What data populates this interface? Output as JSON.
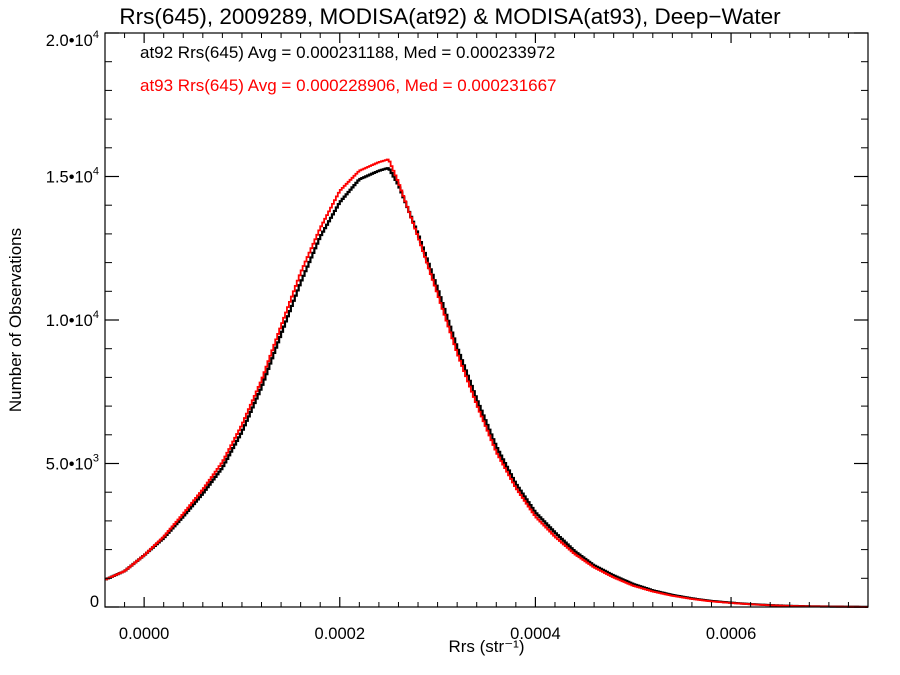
{
  "chart_data": {
    "type": "line",
    "title": "Rrs(645), 2009289, MODISA(at92) & MODISA(at93), Deep−Water",
    "xlabel": "Rrs (str⁻¹)",
    "ylabel": "Number of Observations",
    "xlim": [
      -4e-05,
      0.00074
    ],
    "ylim": [
      0,
      20000
    ],
    "x_ticks": [
      {
        "value": 0.0,
        "label": "0.0000"
      },
      {
        "value": 0.0002,
        "label": "0.0002"
      },
      {
        "value": 0.0004,
        "label": "0.0004"
      },
      {
        "value": 0.0006,
        "label": "0.0006"
      }
    ],
    "y_ticks": [
      {
        "value": 0,
        "label": "0"
      },
      {
        "value": 5000,
        "label": "5.0•10",
        "exp": "3"
      },
      {
        "value": 10000,
        "label": "1.0•10",
        "exp": "4"
      },
      {
        "value": 15000,
        "label": "1.5•10",
        "exp": "4"
      },
      {
        "value": 20000,
        "label": "2.0•10",
        "exp": "4"
      }
    ],
    "grid": false,
    "series": [
      {
        "name": "at92",
        "color": "#000000",
        "annotation": "at92 Rrs(645) Avg = 0.000231188, Med = 0.000233972",
        "x": [
          -4e-05,
          -2e-05,
          0.0,
          2e-05,
          4e-05,
          6e-05,
          8e-05,
          0.0001,
          0.00012,
          0.00014,
          0.00016,
          0.00018,
          0.0002,
          0.00022,
          0.00024,
          0.00025,
          0.00026,
          0.00028,
          0.0003,
          0.00032,
          0.00034,
          0.00036,
          0.00038,
          0.0004,
          0.00042,
          0.00044,
          0.00046,
          0.00048,
          0.0005,
          0.00052,
          0.00054,
          0.00056,
          0.00058,
          0.0006,
          0.00062,
          0.00064,
          0.00066,
          0.00068,
          0.0007,
          0.00072,
          0.00074
        ],
        "values": [
          950,
          1250,
          1800,
          2400,
          3150,
          3950,
          4850,
          6100,
          7650,
          9500,
          11300,
          12900,
          14100,
          14900,
          15200,
          15300,
          14700,
          13000,
          11100,
          9050,
          7250,
          5600,
          4300,
          3300,
          2600,
          1950,
          1450,
          1100,
          800,
          580,
          420,
          300,
          210,
          150,
          100,
          65,
          40,
          25,
          15,
          10,
          5
        ]
      },
      {
        "name": "at93",
        "color": "#ff0000",
        "annotation": "at93 Rrs(645) Avg = 0.000228906, Med = 0.000231667",
        "x": [
          -4e-05,
          -2e-05,
          0.0,
          2e-05,
          4e-05,
          6e-05,
          8e-05,
          0.0001,
          0.00012,
          0.00014,
          0.00016,
          0.00018,
          0.0002,
          0.00022,
          0.00024,
          0.00025,
          0.00026,
          0.00028,
          0.0003,
          0.00032,
          0.00034,
          0.00036,
          0.00038,
          0.0004,
          0.00042,
          0.00044,
          0.00046,
          0.00048,
          0.0005,
          0.00052,
          0.00054,
          0.00056,
          0.00058,
          0.0006,
          0.00062,
          0.00064,
          0.00066,
          0.00068,
          0.0007,
          0.00072,
          0.00074
        ],
        "values": [
          950,
          1250,
          1800,
          2450,
          3250,
          4100,
          5050,
          6350,
          7900,
          9800,
          11650,
          13200,
          14500,
          15200,
          15500,
          15600,
          14800,
          12900,
          10900,
          8850,
          7050,
          5400,
          4150,
          3150,
          2450,
          1850,
          1380,
          1030,
          740,
          540,
          390,
          280,
          195,
          140,
          95,
          60,
          38,
          23,
          14,
          8,
          4
        ]
      }
    ]
  }
}
